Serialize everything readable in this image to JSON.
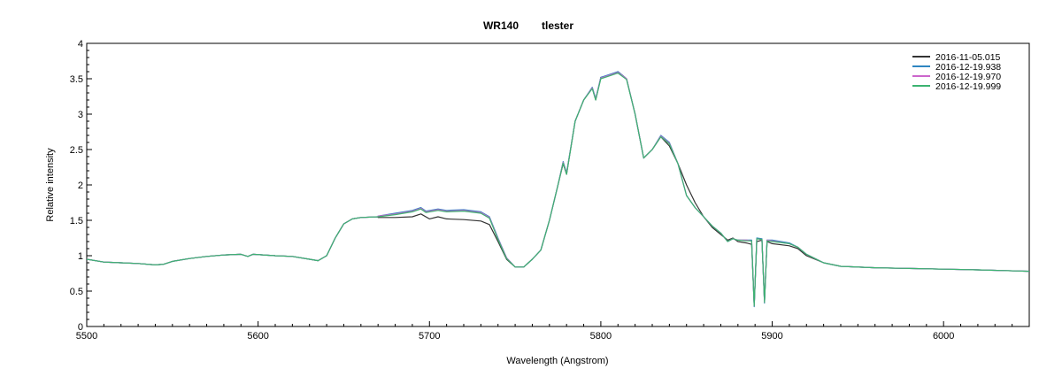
{
  "chart_data": {
    "type": "line",
    "title_parts": [
      "WR140",
      "tlester"
    ],
    "xlabel": "Wavelength (Angstrom)",
    "ylabel": "Relative intensity",
    "xlim": [
      5500,
      6050
    ],
    "ylim": [
      0,
      4
    ],
    "xticks": [
      5500,
      5600,
      5700,
      5800,
      5900,
      6000
    ],
    "yticks": [
      0,
      0.5,
      1,
      1.5,
      2,
      2.5,
      3,
      3.5,
      4
    ],
    "grid": false,
    "legend_position": "top-right",
    "base_spectrum": [
      [
        5500,
        0.95
      ],
      [
        5510,
        0.91
      ],
      [
        5520,
        0.9
      ],
      [
        5530,
        0.89
      ],
      [
        5540,
        0.87
      ],
      [
        5545,
        0.88
      ],
      [
        5550,
        0.92
      ],
      [
        5560,
        0.96
      ],
      [
        5570,
        0.99
      ],
      [
        5580,
        1.01
      ],
      [
        5590,
        1.02
      ],
      [
        5594,
        0.99
      ],
      [
        5597,
        1.02
      ],
      [
        5610,
        1.0
      ],
      [
        5620,
        0.99
      ],
      [
        5630,
        0.95
      ],
      [
        5635,
        0.93
      ],
      [
        5640,
        1.0
      ],
      [
        5645,
        1.25
      ],
      [
        5650,
        1.45
      ],
      [
        5655,
        1.52
      ],
      [
        5660,
        1.54
      ],
      [
        5670,
        1.55
      ]
    ],
    "series": [
      {
        "name": "2016-11-05.015",
        "color": "#333333",
        "points": [
          [
            5670,
            1.54
          ],
          [
            5680,
            1.54
          ],
          [
            5690,
            1.55
          ],
          [
            5695,
            1.59
          ],
          [
            5700,
            1.52
          ],
          [
            5705,
            1.55
          ],
          [
            5710,
            1.52
          ],
          [
            5720,
            1.51
          ],
          [
            5730,
            1.49
          ],
          [
            5735,
            1.44
          ],
          [
            5740,
            1.2
          ],
          [
            5745,
            0.95
          ],
          [
            5750,
            0.84
          ],
          [
            5755,
            0.84
          ],
          [
            5760,
            0.95
          ],
          [
            5765,
            1.08
          ],
          [
            5770,
            1.5
          ],
          [
            5775,
            2.0
          ],
          [
            5778,
            2.3
          ],
          [
            5780,
            2.15
          ],
          [
            5785,
            2.9
          ],
          [
            5790,
            3.2
          ],
          [
            5795,
            3.37
          ],
          [
            5797,
            3.2
          ],
          [
            5800,
            3.52
          ],
          [
            5805,
            3.55
          ],
          [
            5810,
            3.6
          ],
          [
            5815,
            3.5
          ],
          [
            5820,
            3.0
          ],
          [
            5825,
            2.38
          ],
          [
            5830,
            2.5
          ],
          [
            5835,
            2.68
          ],
          [
            5840,
            2.55
          ],
          [
            5845,
            2.3
          ],
          [
            5850,
            2.0
          ],
          [
            5855,
            1.75
          ],
          [
            5860,
            1.55
          ],
          [
            5865,
            1.4
          ],
          [
            5870,
            1.3
          ],
          [
            5874,
            1.22
          ],
          [
            5877,
            1.25
          ],
          [
            5880,
            1.2
          ],
          [
            5885,
            1.18
          ],
          [
            5888,
            1.16
          ],
          [
            5889.5,
            0.3
          ],
          [
            5891,
            1.2
          ],
          [
            5894,
            1.22
          ],
          [
            5895.5,
            0.35
          ],
          [
            5897,
            1.2
          ],
          [
            5900,
            1.17
          ],
          [
            5910,
            1.14
          ],
          [
            5915,
            1.1
          ],
          [
            5920,
            1.0
          ],
          [
            5930,
            0.9
          ],
          [
            5940,
            0.85
          ],
          [
            5960,
            0.83
          ],
          [
            5980,
            0.82
          ],
          [
            6000,
            0.81
          ],
          [
            6020,
            0.8
          ],
          [
            6050,
            0.78
          ]
        ]
      },
      {
        "name": "2016-12-19.938",
        "color": "#2e86c1",
        "points": [
          [
            5670,
            1.56
          ],
          [
            5680,
            1.6
          ],
          [
            5690,
            1.64
          ],
          [
            5695,
            1.68
          ],
          [
            5698,
            1.63
          ],
          [
            5705,
            1.66
          ],
          [
            5710,
            1.64
          ],
          [
            5720,
            1.65
          ],
          [
            5730,
            1.62
          ],
          [
            5735,
            1.55
          ],
          [
            5740,
            1.25
          ],
          [
            5745,
            0.97
          ],
          [
            5750,
            0.84
          ],
          [
            5755,
            0.84
          ],
          [
            5760,
            0.95
          ],
          [
            5765,
            1.08
          ],
          [
            5770,
            1.5
          ],
          [
            5775,
            2.0
          ],
          [
            5778,
            2.33
          ],
          [
            5780,
            2.17
          ],
          [
            5785,
            2.9
          ],
          [
            5790,
            3.2
          ],
          [
            5795,
            3.38
          ],
          [
            5797,
            3.22
          ],
          [
            5800,
            3.52
          ],
          [
            5805,
            3.56
          ],
          [
            5810,
            3.6
          ],
          [
            5815,
            3.5
          ],
          [
            5820,
            3.0
          ],
          [
            5825,
            2.38
          ],
          [
            5830,
            2.5
          ],
          [
            5835,
            2.7
          ],
          [
            5840,
            2.6
          ],
          [
            5845,
            2.3
          ],
          [
            5850,
            1.85
          ],
          [
            5855,
            1.68
          ],
          [
            5860,
            1.55
          ],
          [
            5865,
            1.42
          ],
          [
            5870,
            1.32
          ],
          [
            5874,
            1.2
          ],
          [
            5877,
            1.24
          ],
          [
            5880,
            1.22
          ],
          [
            5885,
            1.22
          ],
          [
            5888,
            1.22
          ],
          [
            5889.5,
            0.28
          ],
          [
            5891,
            1.25
          ],
          [
            5894,
            1.24
          ],
          [
            5895.5,
            0.33
          ],
          [
            5897,
            1.22
          ],
          [
            5900,
            1.22
          ],
          [
            5910,
            1.18
          ],
          [
            5915,
            1.12
          ],
          [
            5920,
            1.02
          ],
          [
            5930,
            0.9
          ],
          [
            5940,
            0.85
          ],
          [
            5960,
            0.83
          ],
          [
            5980,
            0.82
          ],
          [
            6000,
            0.81
          ],
          [
            6020,
            0.8
          ],
          [
            6050,
            0.78
          ]
        ]
      },
      {
        "name": "2016-12-19.970",
        "color": "#cc66cc",
        "points": [
          [
            5670,
            1.56
          ],
          [
            5680,
            1.59
          ],
          [
            5690,
            1.63
          ],
          [
            5695,
            1.67
          ],
          [
            5698,
            1.62
          ],
          [
            5705,
            1.65
          ],
          [
            5710,
            1.63
          ],
          [
            5720,
            1.64
          ],
          [
            5730,
            1.61
          ],
          [
            5735,
            1.54
          ],
          [
            5740,
            1.24
          ],
          [
            5745,
            0.97
          ],
          [
            5750,
            0.84
          ],
          [
            5755,
            0.84
          ],
          [
            5760,
            0.95
          ],
          [
            5765,
            1.08
          ],
          [
            5770,
            1.5
          ],
          [
            5775,
            2.0
          ],
          [
            5778,
            2.32
          ],
          [
            5780,
            2.16
          ],
          [
            5785,
            2.9
          ],
          [
            5790,
            3.2
          ],
          [
            5795,
            3.37
          ],
          [
            5797,
            3.21
          ],
          [
            5800,
            3.51
          ],
          [
            5805,
            3.55
          ],
          [
            5810,
            3.59
          ],
          [
            5815,
            3.5
          ],
          [
            5820,
            3.0
          ],
          [
            5825,
            2.38
          ],
          [
            5830,
            2.5
          ],
          [
            5835,
            2.69
          ],
          [
            5840,
            2.59
          ],
          [
            5845,
            2.3
          ],
          [
            5850,
            1.85
          ],
          [
            5855,
            1.68
          ],
          [
            5860,
            1.55
          ],
          [
            5865,
            1.42
          ],
          [
            5870,
            1.32
          ],
          [
            5874,
            1.2
          ],
          [
            5877,
            1.24
          ],
          [
            5880,
            1.22
          ],
          [
            5885,
            1.22
          ],
          [
            5888,
            1.21
          ],
          [
            5889.5,
            0.29
          ],
          [
            5891,
            1.24
          ],
          [
            5894,
            1.23
          ],
          [
            5895.5,
            0.34
          ],
          [
            5897,
            1.22
          ],
          [
            5900,
            1.21
          ],
          [
            5910,
            1.17
          ],
          [
            5915,
            1.12
          ],
          [
            5920,
            1.02
          ],
          [
            5930,
            0.9
          ],
          [
            5940,
            0.85
          ],
          [
            5960,
            0.83
          ],
          [
            5980,
            0.82
          ],
          [
            6000,
            0.81
          ],
          [
            6020,
            0.8
          ],
          [
            6050,
            0.78
          ]
        ]
      },
      {
        "name": "2016-12-19.999",
        "color": "#3cb371",
        "points": [
          [
            5670,
            1.55
          ],
          [
            5680,
            1.58
          ],
          [
            5690,
            1.62
          ],
          [
            5695,
            1.66
          ],
          [
            5698,
            1.61
          ],
          [
            5705,
            1.64
          ],
          [
            5710,
            1.62
          ],
          [
            5720,
            1.63
          ],
          [
            5730,
            1.6
          ],
          [
            5735,
            1.53
          ],
          [
            5740,
            1.23
          ],
          [
            5745,
            0.96
          ],
          [
            5750,
            0.84
          ],
          [
            5755,
            0.84
          ],
          [
            5760,
            0.95
          ],
          [
            5765,
            1.08
          ],
          [
            5770,
            1.5
          ],
          [
            5775,
            2.0
          ],
          [
            5778,
            2.31
          ],
          [
            5780,
            2.15
          ],
          [
            5785,
            2.9
          ],
          [
            5790,
            3.2
          ],
          [
            5795,
            3.36
          ],
          [
            5797,
            3.2
          ],
          [
            5800,
            3.5
          ],
          [
            5805,
            3.54
          ],
          [
            5810,
            3.58
          ],
          [
            5815,
            3.49
          ],
          [
            5820,
            3.0
          ],
          [
            5825,
            2.38
          ],
          [
            5830,
            2.5
          ],
          [
            5835,
            2.68
          ],
          [
            5840,
            2.58
          ],
          [
            5845,
            2.3
          ],
          [
            5850,
            1.85
          ],
          [
            5855,
            1.68
          ],
          [
            5860,
            1.55
          ],
          [
            5865,
            1.42
          ],
          [
            5870,
            1.32
          ],
          [
            5874,
            1.2
          ],
          [
            5877,
            1.24
          ],
          [
            5880,
            1.22
          ],
          [
            5885,
            1.21
          ],
          [
            5888,
            1.21
          ],
          [
            5889.5,
            0.29
          ],
          [
            5891,
            1.24
          ],
          [
            5894,
            1.23
          ],
          [
            5895.5,
            0.34
          ],
          [
            5897,
            1.21
          ],
          [
            5900,
            1.2
          ],
          [
            5910,
            1.17
          ],
          [
            5915,
            1.12
          ],
          [
            5920,
            1.02
          ],
          [
            5930,
            0.9
          ],
          [
            5940,
            0.85
          ],
          [
            5960,
            0.83
          ],
          [
            5980,
            0.82
          ],
          [
            6000,
            0.81
          ],
          [
            6020,
            0.8
          ],
          [
            6050,
            0.78
          ]
        ]
      }
    ]
  }
}
